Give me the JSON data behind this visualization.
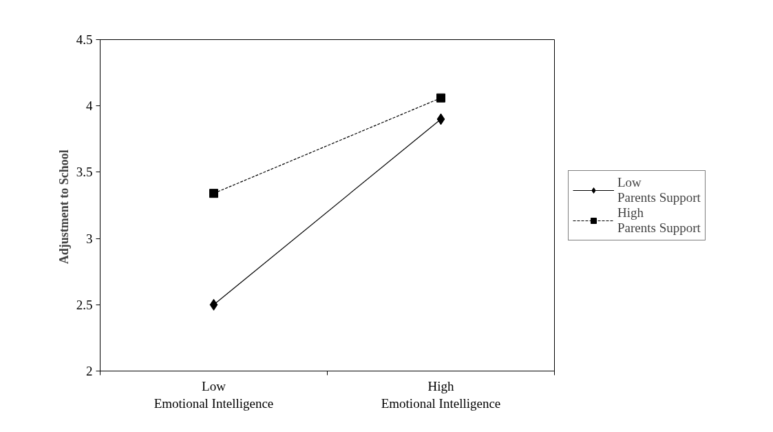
{
  "chart_data": {
    "type": "line",
    "ylabel": "Adjustment  to School",
    "categories": [
      "Low\nEmotional Intelligence",
      "High\nEmotional Intelligence"
    ],
    "series": [
      {
        "name": "Low\nParents Support",
        "color": "#000000",
        "values": [
          2.5,
          3.9
        ],
        "marker": "diamond",
        "line_style": "solid"
      },
      {
        "name": "High\nParents Support",
        "color": "#000000",
        "values": [
          3.34,
          4.06
        ],
        "marker": "square",
        "line_style": "dashed"
      }
    ],
    "ylim": [
      2,
      4.5
    ],
    "yticks": [
      2,
      2.5,
      3,
      3.5,
      4,
      4.5
    ],
    "grid": false,
    "legend": "right"
  }
}
